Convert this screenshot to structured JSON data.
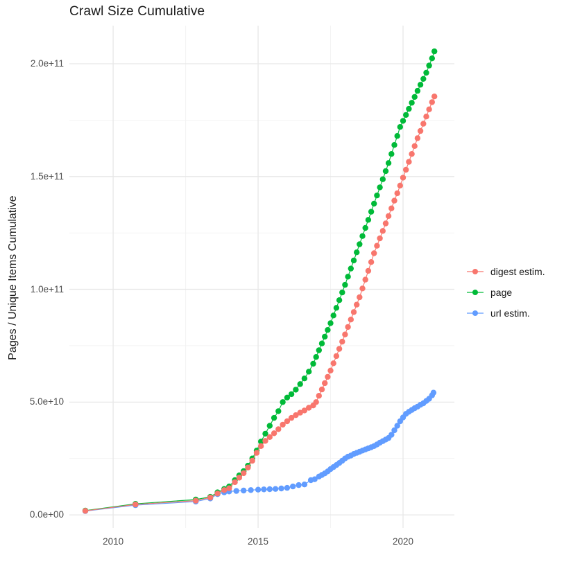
{
  "title": "Crawl Size Cumulative",
  "chart_data": {
    "type": "scatter",
    "title": "Crawl Size Cumulative",
    "xlabel": "",
    "ylabel": "Pages / Unique Items Cumulative",
    "grid": true,
    "legend_position": "right",
    "value_unit": "billions (1e9 pages / unique items)",
    "xlim": [
      2008.49,
      2021.77
    ],
    "ylim_billions": [
      -5.8,
      216.9
    ],
    "x_ticks": [
      {
        "value": 2010,
        "label": "2010"
      },
      {
        "value": 2015,
        "label": "2015"
      },
      {
        "value": 2020,
        "label": "2020"
      }
    ],
    "x_minor": [
      2012.5,
      2017.5
    ],
    "y_ticks": [
      {
        "value": 0,
        "label": "0.0e+00"
      },
      {
        "value": 50,
        "label": "5.0e+10"
      },
      {
        "value": 100,
        "label": "1.0e+11"
      },
      {
        "value": 150,
        "label": "1.5e+11"
      },
      {
        "value": 200,
        "label": "2.0e+11"
      }
    ],
    "y_minor": [
      25,
      75,
      125,
      175
    ],
    "series": [
      {
        "name": "url estim.",
        "color": "#619CFF",
        "points": [
          [
            2009.04,
            1.7
          ],
          [
            2010.77,
            4.3
          ],
          [
            2012.85,
            5.9
          ],
          [
            2013.35,
            7.3
          ],
          [
            2013.6,
            9.2
          ],
          [
            2013.83,
            10.0
          ],
          [
            2014.0,
            10.4
          ],
          [
            2014.25,
            10.6
          ],
          [
            2014.5,
            10.8
          ],
          [
            2014.75,
            11.0
          ],
          [
            2015.0,
            11.2
          ],
          [
            2015.2,
            11.3
          ],
          [
            2015.4,
            11.4
          ],
          [
            2015.6,
            11.5
          ],
          [
            2015.8,
            11.7
          ],
          [
            2016.0,
            12.0
          ],
          [
            2016.2,
            12.6
          ],
          [
            2016.4,
            13.2
          ],
          [
            2016.6,
            13.5
          ],
          [
            2016.82,
            15.4
          ],
          [
            2016.95,
            15.8
          ],
          [
            2017.1,
            17.0
          ],
          [
            2017.2,
            17.7
          ],
          [
            2017.3,
            18.4
          ],
          [
            2017.4,
            19.3
          ],
          [
            2017.5,
            20.3
          ],
          [
            2017.6,
            21.2
          ],
          [
            2017.7,
            22.1
          ],
          [
            2017.8,
            23.0
          ],
          [
            2017.9,
            24.0
          ],
          [
            2018.0,
            25.0
          ],
          [
            2018.1,
            25.8
          ],
          [
            2018.2,
            26.3
          ],
          [
            2018.3,
            27.0
          ],
          [
            2018.4,
            27.5
          ],
          [
            2018.5,
            28.0
          ],
          [
            2018.6,
            28.5
          ],
          [
            2018.7,
            29.0
          ],
          [
            2018.8,
            29.5
          ],
          [
            2018.9,
            30.0
          ],
          [
            2019.0,
            30.5
          ],
          [
            2019.1,
            31.2
          ],
          [
            2019.2,
            32.0
          ],
          [
            2019.3,
            32.7
          ],
          [
            2019.4,
            33.4
          ],
          [
            2019.5,
            34.1
          ],
          [
            2019.6,
            35.5
          ],
          [
            2019.7,
            37.5
          ],
          [
            2019.8,
            39.5
          ],
          [
            2019.9,
            41.5
          ],
          [
            2020.0,
            43.2
          ],
          [
            2020.1,
            44.8
          ],
          [
            2020.2,
            45.7
          ],
          [
            2020.3,
            46.5
          ],
          [
            2020.4,
            47.3
          ],
          [
            2020.5,
            48.0
          ],
          [
            2020.6,
            48.8
          ],
          [
            2020.7,
            49.5
          ],
          [
            2020.8,
            50.5
          ],
          [
            2020.9,
            51.5
          ],
          [
            2021.0,
            53.0
          ],
          [
            2021.05,
            54.2
          ]
        ]
      },
      {
        "name": "page",
        "color": "#00BA38",
        "points": [
          [
            2009.04,
            1.9
          ],
          [
            2010.77,
            4.9
          ],
          [
            2012.85,
            6.8
          ],
          [
            2013.35,
            8.0
          ],
          [
            2013.6,
            10.0
          ],
          [
            2013.83,
            11.5
          ],
          [
            2014.0,
            12.6
          ],
          [
            2014.2,
            15.4
          ],
          [
            2014.35,
            17.5
          ],
          [
            2014.5,
            19.4
          ],
          [
            2014.65,
            21.8
          ],
          [
            2014.8,
            25.0
          ],
          [
            2014.95,
            28.5
          ],
          [
            2015.1,
            32.5
          ],
          [
            2015.25,
            36.0
          ],
          [
            2015.4,
            39.5
          ],
          [
            2015.55,
            43.0
          ],
          [
            2015.7,
            46.0
          ],
          [
            2015.85,
            50.0
          ],
          [
            2016.0,
            52.0
          ],
          [
            2016.15,
            53.5
          ],
          [
            2016.3,
            55.5
          ],
          [
            2016.45,
            58.0
          ],
          [
            2016.6,
            60.5
          ],
          [
            2016.75,
            63.5
          ],
          [
            2016.9,
            67.0
          ],
          [
            2017.0,
            70.0
          ],
          [
            2017.1,
            73.0
          ],
          [
            2017.2,
            76.0
          ],
          [
            2017.3,
            79.0
          ],
          [
            2017.4,
            82.0
          ],
          [
            2017.5,
            85.0
          ],
          [
            2017.6,
            88.4
          ],
          [
            2017.7,
            91.8
          ],
          [
            2017.8,
            95.2
          ],
          [
            2017.9,
            98.6
          ],
          [
            2018.0,
            102.0
          ],
          [
            2018.1,
            105.6
          ],
          [
            2018.2,
            109.2
          ],
          [
            2018.3,
            112.8
          ],
          [
            2018.4,
            116.4
          ],
          [
            2018.5,
            120.0
          ],
          [
            2018.6,
            123.6
          ],
          [
            2018.7,
            127.2
          ],
          [
            2018.8,
            130.8
          ],
          [
            2018.9,
            134.4
          ],
          [
            2019.0,
            138.0
          ],
          [
            2019.1,
            141.6
          ],
          [
            2019.2,
            145.2
          ],
          [
            2019.3,
            148.8
          ],
          [
            2019.4,
            152.4
          ],
          [
            2019.5,
            156.0
          ],
          [
            2019.6,
            160.0
          ],
          [
            2019.7,
            164.0
          ],
          [
            2019.8,
            168.0
          ],
          [
            2019.9,
            172.0
          ],
          [
            2020.0,
            174.7
          ],
          [
            2020.1,
            177.3
          ],
          [
            2020.2,
            180.0
          ],
          [
            2020.3,
            182.7
          ],
          [
            2020.4,
            185.3
          ],
          [
            2020.5,
            188.0
          ],
          [
            2020.6,
            190.7
          ],
          [
            2020.7,
            193.3
          ],
          [
            2020.8,
            196.0
          ],
          [
            2020.9,
            199.2
          ],
          [
            2021.0,
            202.4
          ],
          [
            2021.08,
            205.5
          ]
        ]
      },
      {
        "name": "digest estim.",
        "color": "#F8766D",
        "points": [
          [
            2009.04,
            1.8
          ],
          [
            2010.77,
            4.6
          ],
          [
            2012.85,
            6.3
          ],
          [
            2013.35,
            7.7
          ],
          [
            2013.6,
            9.5
          ],
          [
            2013.83,
            11.0
          ],
          [
            2014.0,
            11.8
          ],
          [
            2014.2,
            14.5
          ],
          [
            2014.35,
            16.5
          ],
          [
            2014.5,
            18.5
          ],
          [
            2014.65,
            21.0
          ],
          [
            2014.8,
            24.0
          ],
          [
            2014.95,
            27.5
          ],
          [
            2015.1,
            30.5
          ],
          [
            2015.25,
            32.8
          ],
          [
            2015.4,
            34.5
          ],
          [
            2015.55,
            36.2
          ],
          [
            2015.7,
            38.0
          ],
          [
            2015.85,
            40.0
          ],
          [
            2016.0,
            41.5
          ],
          [
            2016.15,
            43.0
          ],
          [
            2016.3,
            44.2
          ],
          [
            2016.45,
            45.3
          ],
          [
            2016.6,
            46.3
          ],
          [
            2016.75,
            47.5
          ],
          [
            2016.9,
            48.5
          ],
          [
            2017.0,
            50.0
          ],
          [
            2017.1,
            52.8
          ],
          [
            2017.2,
            55.6
          ],
          [
            2017.3,
            58.4
          ],
          [
            2017.4,
            61.2
          ],
          [
            2017.5,
            64.0
          ],
          [
            2017.6,
            67.2
          ],
          [
            2017.7,
            70.4
          ],
          [
            2017.8,
            73.6
          ],
          [
            2017.9,
            76.8
          ],
          [
            2018.0,
            80.0
          ],
          [
            2018.1,
            83.3
          ],
          [
            2018.2,
            86.6
          ],
          [
            2018.3,
            89.9
          ],
          [
            2018.4,
            93.2
          ],
          [
            2018.5,
            96.5
          ],
          [
            2018.6,
            100.4
          ],
          [
            2018.7,
            104.3
          ],
          [
            2018.8,
            108.2
          ],
          [
            2018.9,
            112.1
          ],
          [
            2019.0,
            116.0
          ],
          [
            2019.1,
            119.3
          ],
          [
            2019.2,
            122.6
          ],
          [
            2019.3,
            125.9
          ],
          [
            2019.4,
            129.2
          ],
          [
            2019.5,
            132.5
          ],
          [
            2019.6,
            135.9
          ],
          [
            2019.7,
            139.3
          ],
          [
            2019.8,
            142.6
          ],
          [
            2019.9,
            146.0
          ],
          [
            2020.0,
            149.5
          ],
          [
            2020.1,
            153.0
          ],
          [
            2020.2,
            156.5
          ],
          [
            2020.3,
            160.0
          ],
          [
            2020.4,
            163.5
          ],
          [
            2020.5,
            167.0
          ],
          [
            2020.6,
            170.2
          ],
          [
            2020.7,
            173.4
          ],
          [
            2020.8,
            176.6
          ],
          [
            2020.9,
            179.8
          ],
          [
            2021.0,
            183.0
          ],
          [
            2021.08,
            185.5
          ]
        ]
      }
    ],
    "legend_items": [
      {
        "label": "digest estim.",
        "color": "#F8766D"
      },
      {
        "label": "page",
        "color": "#00BA38"
      },
      {
        "label": "url estim.",
        "color": "#619CFF"
      }
    ]
  },
  "style": {
    "grid_major_color": "#E7E7E7",
    "grid_minor_color": "#F2F2F2",
    "tick_text_color": "#4d4d4d",
    "title_text_color": "#1a1a1a"
  }
}
